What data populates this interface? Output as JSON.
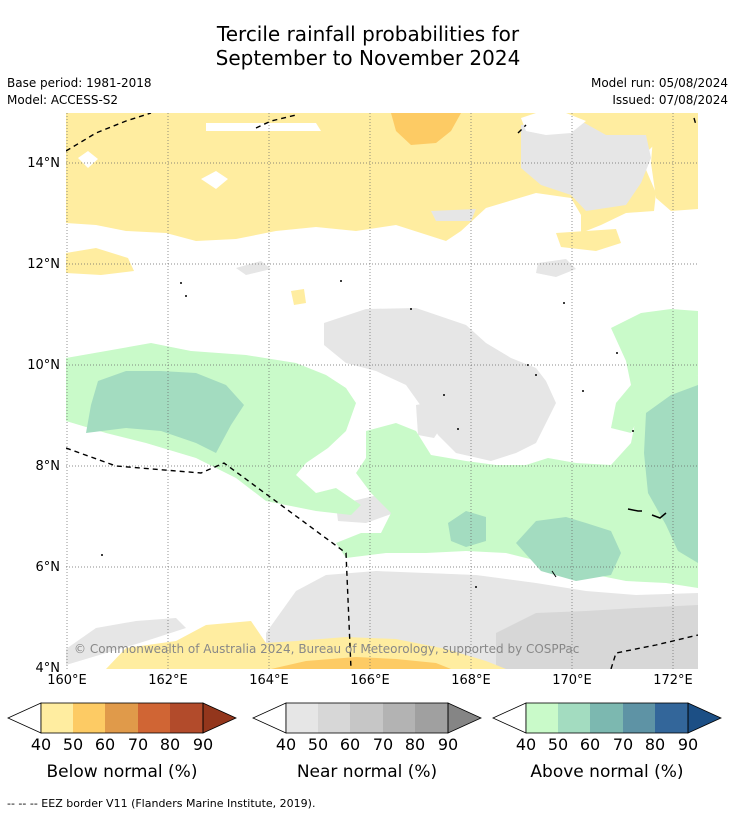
{
  "title_line1": "Tercile rainfall probabilities for",
  "title_line2": "September to November 2024",
  "base_period": "Base period: 1981-2018",
  "model": "Model: ACCESS-S2",
  "model_run": "Model run: 05/08/2024",
  "issued": "Issued: 07/08/2024",
  "copyright": "© Commonwealth of Australia 2024, Bureau of Meteorology, supported by COSPPac",
  "lat_ticks": [
    "14°N",
    "12°N",
    "10°N",
    "8°N",
    "6°N",
    "4°N"
  ],
  "lon_ticks": [
    "160°E",
    "162°E",
    "164°E",
    "166°E",
    "168°E",
    "170°E",
    "172°E"
  ],
  "colorbars": [
    {
      "title": "Below normal (%)",
      "ticks": [
        "40",
        "50",
        "60",
        "70",
        "80",
        "90"
      ],
      "colors": [
        "#ffeda0",
        "#fdcb64",
        "#e09a4a",
        "#d06534",
        "#b24b2b",
        "#93361c"
      ]
    },
    {
      "title": "Near normal (%)",
      "ticks": [
        "40",
        "50",
        "60",
        "70",
        "80",
        "90"
      ],
      "colors": [
        "#e6e6e6",
        "#d7d7d7",
        "#c6c6c6",
        "#b3b3b3",
        "#a0a0a0",
        "#858585"
      ]
    },
    {
      "title": "Above normal (%)",
      "ticks": [
        "40",
        "50",
        "60",
        "70",
        "80",
        "90"
      ],
      "colors": [
        "#c9fac9",
        "#a3dcc0",
        "#7cb8b0",
        "#5e93a5",
        "#33669a",
        "#1c4f85"
      ]
    }
  ],
  "footnote": "--  --  -- EEZ border V11 (Flanders Marine Institute, 2019)."
}
